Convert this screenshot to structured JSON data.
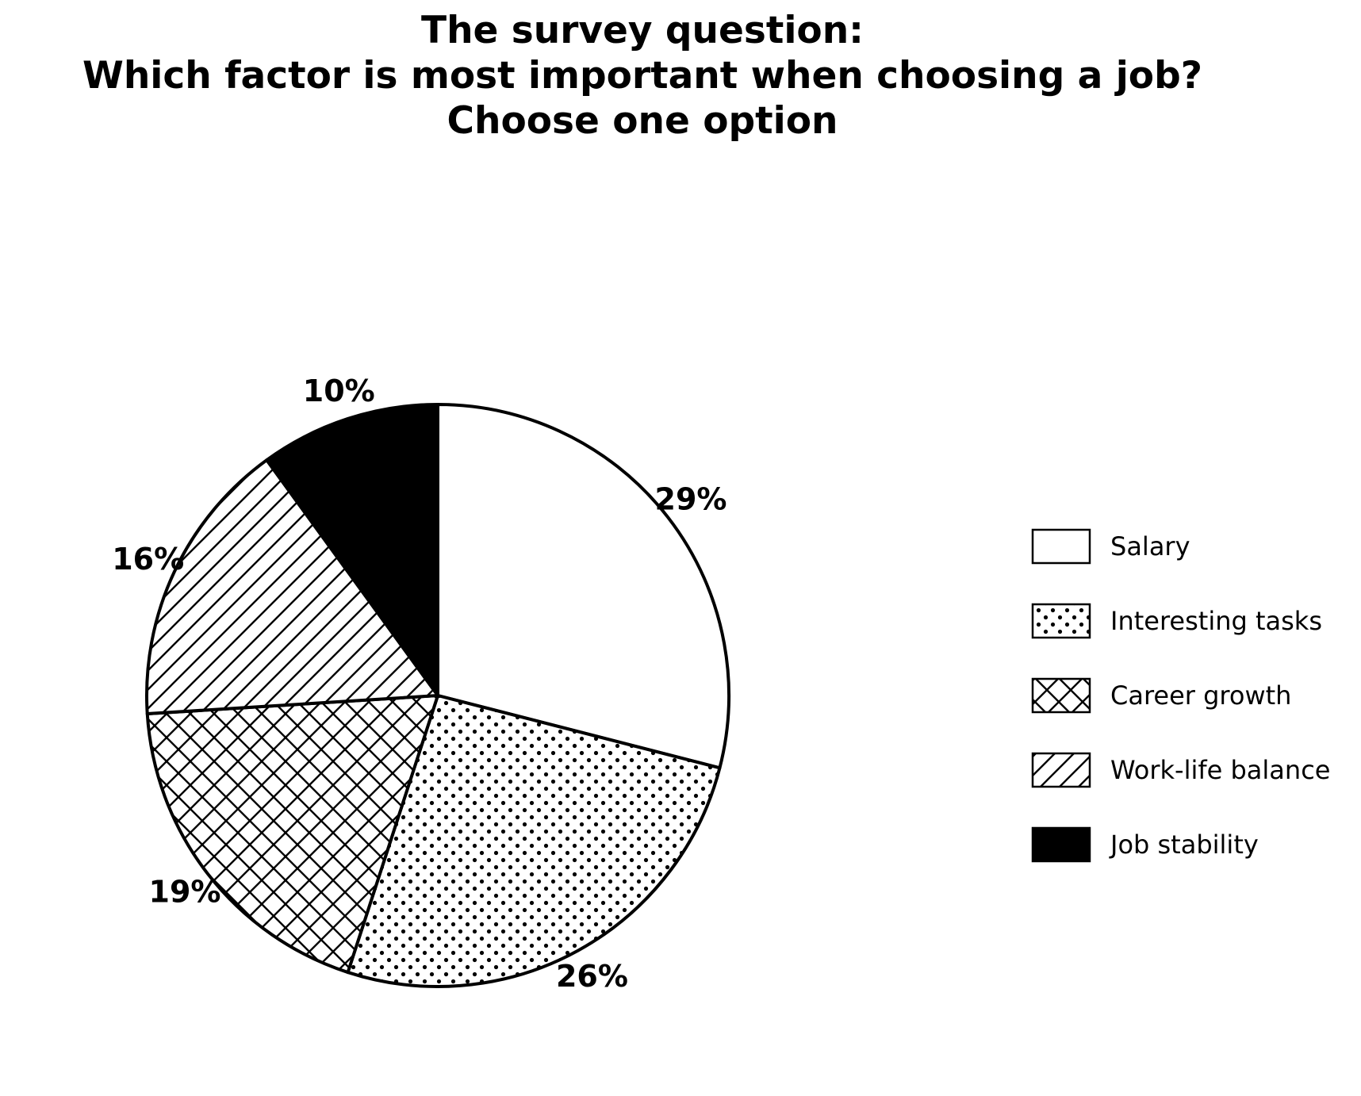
{
  "chart_data": {
    "type": "pie",
    "title_lines": [
      "The survey question:",
      "Which factor is most important when choosing a job?",
      "Choose one option"
    ],
    "categories": [
      "Salary",
      "Interesting tasks",
      "Career growth",
      "Work-life balance",
      "Job stability"
    ],
    "values": [
      29,
      26,
      19,
      16,
      10
    ],
    "labels": [
      "29%",
      "26%",
      "19%",
      "16%",
      "10%"
    ],
    "patterns": [
      "none",
      "dots",
      "crosshatch",
      "diagonal",
      "solid"
    ],
    "start_angle": "top",
    "direction": "clockwise",
    "legend_position": "right",
    "colors": {
      "fill": "#ffffff",
      "ink": "#000000"
    }
  }
}
